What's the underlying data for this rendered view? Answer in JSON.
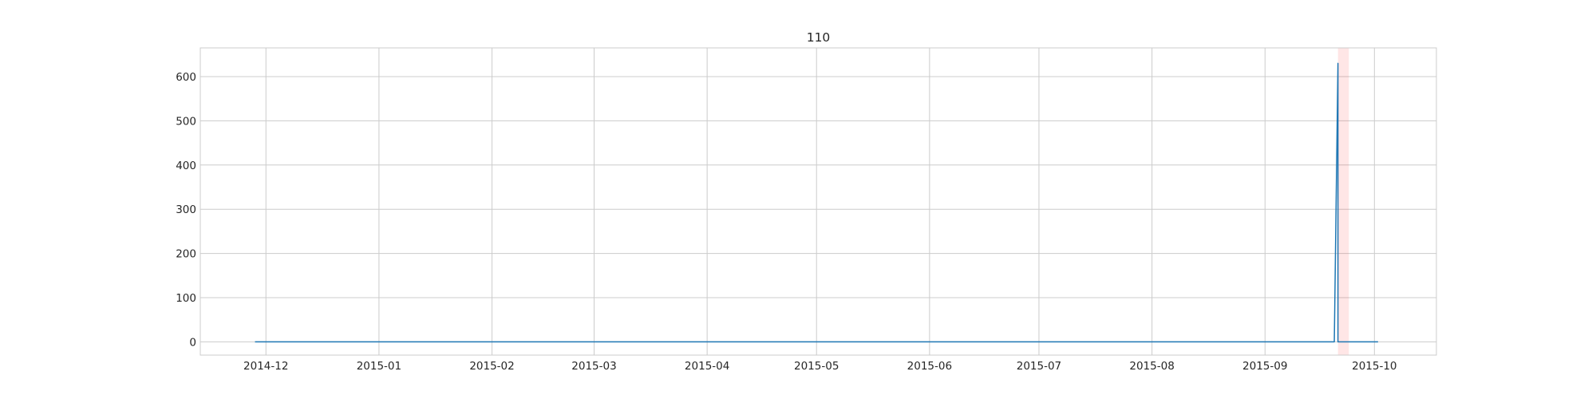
{
  "chart_data": {
    "type": "line",
    "title": "110",
    "xlabel": "",
    "ylabel": "",
    "x_axis": "date",
    "xlim": [
      "2014-11-13",
      "2015-10-18"
    ],
    "ylim": [
      -30,
      665
    ],
    "x_ticks": [
      "2014-12",
      "2015-01",
      "2015-02",
      "2015-03",
      "2015-04",
      "2015-05",
      "2015-06",
      "2015-07",
      "2015-08",
      "2015-09",
      "2015-10"
    ],
    "y_ticks": [
      0,
      100,
      200,
      300,
      400,
      500,
      600
    ],
    "grid": true,
    "series": [
      {
        "color": "#1f77b4",
        "points": [
          {
            "x": "2014-11-28",
            "y": 0
          },
          {
            "x": "2015-09-20",
            "y": 0
          },
          {
            "x": "2015-09-21",
            "y": 630
          },
          {
            "x": "2015-09-21",
            "y": 0
          },
          {
            "x": "2015-10-02",
            "y": 0
          }
        ]
      }
    ],
    "highlight_span": {
      "start": "2015-09-21",
      "end": "2015-09-24",
      "color": "#ff000019"
    }
  }
}
